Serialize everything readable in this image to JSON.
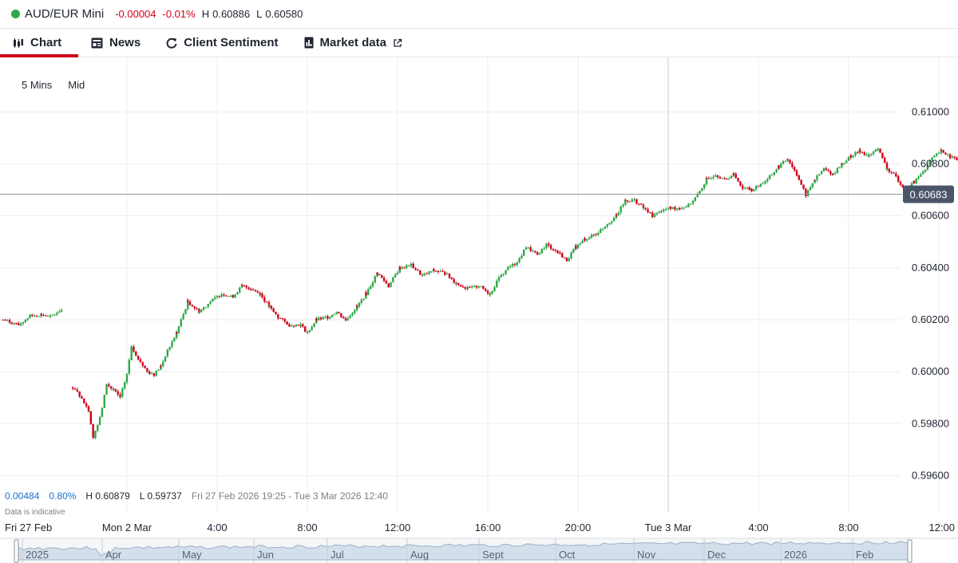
{
  "header": {
    "instrument": "AUD/EUR Mini",
    "change_abs": "-0.00004",
    "change_pct": "-0.01%",
    "high_label": "H",
    "high_value": "0.60886",
    "low_label": "L",
    "low_value": "0.60580",
    "status_color": "#2ea84a"
  },
  "tabs": [
    {
      "label": "Chart",
      "icon": "candlestick-icon",
      "active": true
    },
    {
      "label": "News",
      "icon": "newspaper-icon",
      "active": false
    },
    {
      "label": "Client Sentiment",
      "icon": "refresh-icon",
      "active": false
    },
    {
      "label": "Market data",
      "icon": "market-data-icon",
      "external_icon": "external-link-icon",
      "active": false
    }
  ],
  "toolbar": {
    "interval": "5 Mins",
    "price_type": "Mid"
  },
  "stats": {
    "change": "0.00484",
    "change_pct": "0.80%",
    "high": "H 0.60879",
    "low": "L 0.59737",
    "range": "Fri 27 Feb 2026 19:25 - Tue 3 Mar 2026 12:40",
    "note": "Data is indicative"
  },
  "colors": {
    "up": "#2ea84a",
    "down": "#d0021b",
    "accent": "#d0021b",
    "price_tag": "#4a5568"
  },
  "chart_data": {
    "type": "candlestick",
    "y_ticks": [
      "0.61000",
      "0.60800",
      "0.60600",
      "0.60400",
      "0.60200",
      "0.60000",
      "0.59800",
      "0.59600"
    ],
    "ylim": [
      0.5946,
      0.6121
    ],
    "current_price": "0.60683",
    "x_tick_labels": [
      "Fri 27 Feb",
      "Mon 2 Mar",
      "4:00",
      "8:00",
      "12:00",
      "16:00",
      "20:00",
      "Tue 3 Mar",
      "4:00",
      "8:00",
      "12:00"
    ],
    "x_ticks_hours": [
      -5,
      0,
      4,
      8,
      12,
      16,
      20,
      24,
      28,
      32,
      36
    ],
    "x_start": "Fri 27 Feb 19:25",
    "session_break_after": "Fri 27 Feb",
    "series_path": [
      [
        -5.5,
        0.602
      ],
      [
        -4.8,
        0.6018
      ],
      [
        -4.3,
        0.60215
      ],
      [
        -3.8,
        0.6022
      ],
      [
        -3.4,
        0.6021
      ],
      [
        -2.9,
        0.6024
      ],
      [
        -2.4,
        0.5994
      ],
      [
        -2.0,
        0.599
      ],
      [
        -1.7,
        0.5985
      ],
      [
        -1.5,
        0.5975
      ],
      [
        -1.2,
        0.5982
      ],
      [
        -0.9,
        0.5995
      ],
      [
        -0.6,
        0.5993
      ],
      [
        -0.3,
        0.599
      ],
      [
        0.0,
        0.5999
      ],
      [
        0.2,
        0.601
      ],
      [
        0.5,
        0.6005
      ],
      [
        0.9,
        0.6
      ],
      [
        1.2,
        0.5999
      ],
      [
        1.5,
        0.6002
      ],
      [
        1.8,
        0.6008
      ],
      [
        2.2,
        0.6015
      ],
      [
        2.7,
        0.6027
      ],
      [
        3.2,
        0.6023
      ],
      [
        3.7,
        0.6027
      ],
      [
        4.2,
        0.603
      ],
      [
        4.7,
        0.6029
      ],
      [
        5.1,
        0.6033
      ],
      [
        5.5,
        0.6032
      ],
      [
        5.9,
        0.603
      ],
      [
        6.3,
        0.6025
      ],
      [
        6.7,
        0.6021
      ],
      [
        7.2,
        0.6018
      ],
      [
        7.7,
        0.6018
      ],
      [
        8.0,
        0.6015
      ],
      [
        8.4,
        0.602
      ],
      [
        8.9,
        0.6021
      ],
      [
        9.3,
        0.6023
      ],
      [
        9.7,
        0.602
      ],
      [
        10.2,
        0.6025
      ],
      [
        10.6,
        0.603
      ],
      [
        11.1,
        0.6038
      ],
      [
        11.6,
        0.6033
      ],
      [
        12.1,
        0.604
      ],
      [
        12.6,
        0.6041
      ],
      [
        13.1,
        0.6037
      ],
      [
        13.6,
        0.6039
      ],
      [
        14.1,
        0.6038
      ],
      [
        14.6,
        0.6034
      ],
      [
        15.1,
        0.6032
      ],
      [
        15.6,
        0.6033
      ],
      [
        16.1,
        0.603
      ],
      [
        16.5,
        0.6036
      ],
      [
        16.9,
        0.604
      ],
      [
        17.3,
        0.6042
      ],
      [
        17.7,
        0.6048
      ],
      [
        18.2,
        0.6045
      ],
      [
        18.6,
        0.6049
      ],
      [
        19.1,
        0.6046
      ],
      [
        19.5,
        0.6043
      ],
      [
        19.9,
        0.6048
      ],
      [
        20.3,
        0.6051
      ],
      [
        20.8,
        0.6053
      ],
      [
        21.3,
        0.6057
      ],
      [
        21.7,
        0.606
      ],
      [
        22.1,
        0.6066
      ],
      [
        22.5,
        0.6066
      ],
      [
        22.9,
        0.6063
      ],
      [
        23.3,
        0.606
      ],
      [
        23.7,
        0.6062
      ],
      [
        24.1,
        0.6063
      ],
      [
        24.5,
        0.6063
      ],
      [
        24.9,
        0.6064
      ],
      [
        25.3,
        0.6068
      ],
      [
        25.7,
        0.6074
      ],
      [
        26.1,
        0.6076
      ],
      [
        26.5,
        0.6074
      ],
      [
        26.9,
        0.6076
      ],
      [
        27.3,
        0.6071
      ],
      [
        27.7,
        0.607
      ],
      [
        28.1,
        0.6072
      ],
      [
        28.5,
        0.6075
      ],
      [
        28.9,
        0.6079
      ],
      [
        29.3,
        0.6082
      ],
      [
        29.7,
        0.6076
      ],
      [
        30.1,
        0.6068
      ],
      [
        30.5,
        0.6074
      ],
      [
        30.9,
        0.6078
      ],
      [
        31.3,
        0.6076
      ],
      [
        31.7,
        0.608
      ],
      [
        32.1,
        0.6083
      ],
      [
        32.5,
        0.6085
      ],
      [
        32.9,
        0.6083
      ],
      [
        33.3,
        0.6086
      ],
      [
        33.7,
        0.6078
      ],
      [
        34.1,
        0.6075
      ],
      [
        34.5,
        0.607
      ],
      [
        34.9,
        0.6073
      ],
      [
        35.3,
        0.6077
      ],
      [
        35.7,
        0.6082
      ],
      [
        36.1,
        0.6085
      ],
      [
        36.5,
        0.6083
      ],
      [
        36.9,
        0.6081
      ],
      [
        37.3,
        0.6078
      ],
      [
        37.7,
        0.6073
      ],
      [
        38.0,
        0.60683
      ]
    ]
  }
}
